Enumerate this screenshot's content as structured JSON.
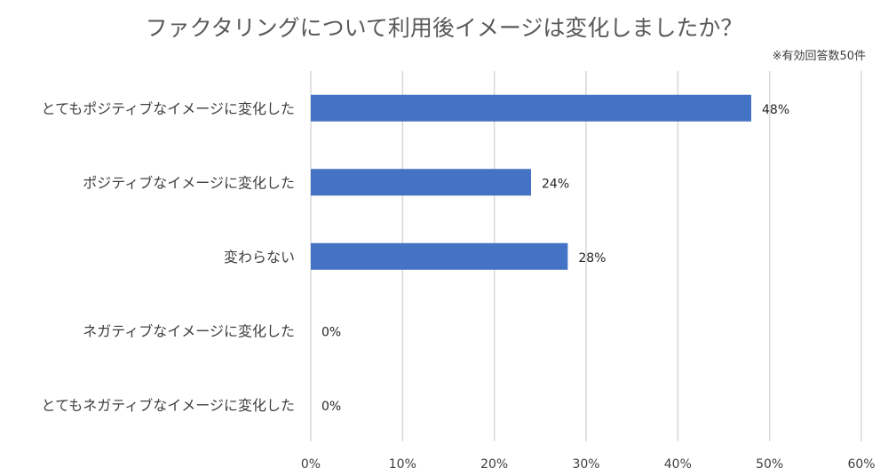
{
  "chart_data": {
    "type": "bar",
    "orientation": "horizontal",
    "title": "ファクタリングについて利用後イメージは変化しましたか？",
    "note": "※有効回答数50件",
    "categories": [
      "とてもポジティブなイメージに変化した",
      "ポジティブなイメージに変化した",
      "変わらない",
      "ネガティブなイメージに変化した",
      "とてもネガティブなイメージに変化した"
    ],
    "values": [
      48,
      24,
      28,
      0,
      0
    ],
    "data_labels": [
      "48%",
      "24%",
      "28%",
      "0%",
      "0%"
    ],
    "x_ticks": [
      "0%",
      "10%",
      "20%",
      "30%",
      "40%",
      "50%",
      "60%"
    ],
    "xlim": [
      0,
      60
    ],
    "grid": "vertical",
    "legend": "none",
    "bar_color": "#4472c4"
  }
}
